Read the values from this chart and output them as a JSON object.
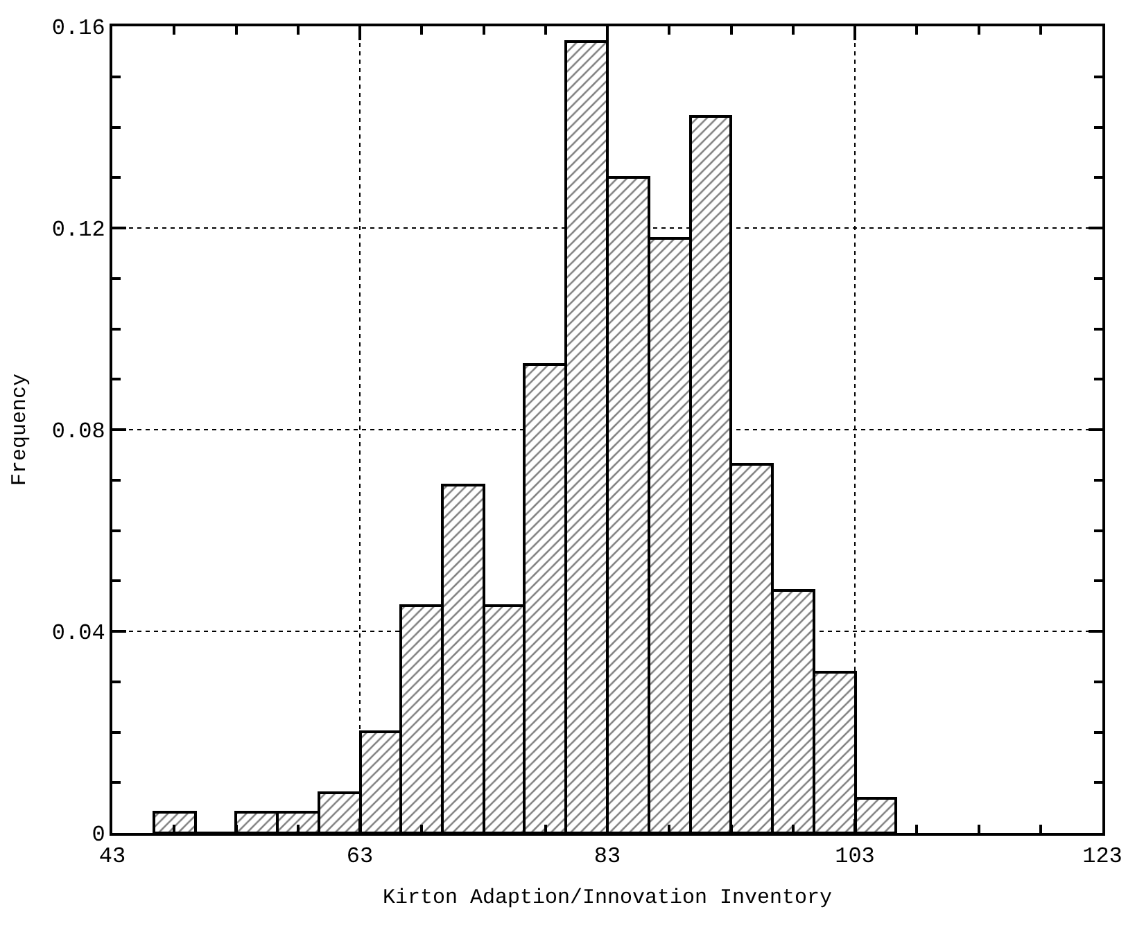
{
  "chart_data": {
    "type": "histogram",
    "xlabel": "Kirton Adaption/Innovation Inventory",
    "ylabel": "Frequency",
    "bins": [
      46.33,
      49.67,
      53,
      56.33,
      59.67,
      63,
      66.33,
      69.67,
      73,
      76.33,
      79.67,
      83,
      86.33,
      89.67,
      93,
      96.33,
      99.67,
      103,
      106.33
    ],
    "values": [
      0.004,
      0,
      0.004,
      0.004,
      0.008,
      0.02,
      0.045,
      0.069,
      0.045,
      0.093,
      0.157,
      0.13,
      0.118,
      0.142,
      0.073,
      0.048,
      0.032,
      0.007
    ],
    "color": "#000000",
    "xlim": [
      43,
      123
    ],
    "xticks": [
      43,
      {
        "value": 48,
        "label": null
      },
      {
        "value": 53,
        "label": null
      },
      {
        "value": 58,
        "label": null
      },
      63,
      {
        "value": 68,
        "label": null
      },
      {
        "value": 73,
        "label": null
      },
      {
        "value": 78,
        "label": null
      },
      83,
      {
        "value": 88,
        "label": null
      },
      {
        "value": 93,
        "label": null
      },
      {
        "value": 98,
        "label": null
      },
      103,
      {
        "value": 108,
        "label": null
      },
      {
        "value": 113,
        "label": null
      },
      {
        "value": 118,
        "label": null
      },
      123
    ],
    "ylim": [
      0,
      0.16
    ],
    "yticks": [
      0,
      {
        "value": 0.01,
        "label": null
      },
      {
        "value": 0.02,
        "label": null
      },
      {
        "value": 0.03,
        "label": null
      },
      0.04,
      {
        "value": 0.05,
        "label": null
      },
      {
        "value": 0.06,
        "label": null
      },
      {
        "value": 0.07,
        "label": null
      },
      0.08,
      {
        "value": 0.09,
        "label": null
      },
      {
        "value": 0.1,
        "label": null
      },
      {
        "value": 0.11,
        "label": null
      },
      0.12,
      {
        "value": 0.13,
        "label": null
      },
      {
        "value": 0.14,
        "label": null
      },
      {
        "value": 0.15,
        "label": null
      },
      0.16
    ],
    "grid": true
  }
}
